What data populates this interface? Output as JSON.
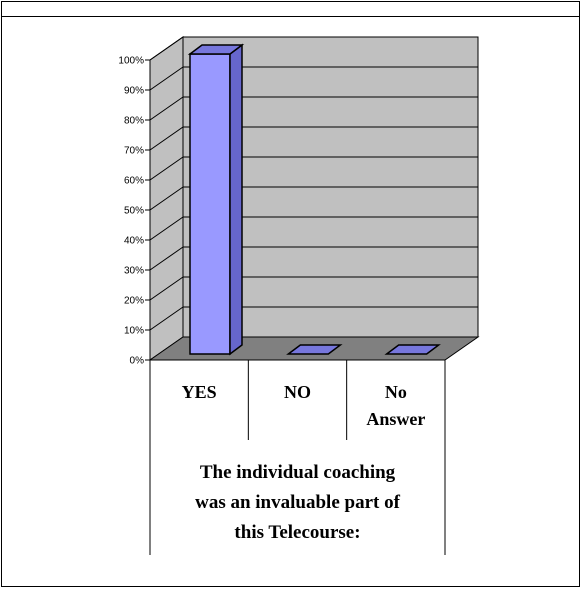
{
  "chart_data": {
    "type": "bar",
    "categories": [
      "YES",
      "NO",
      "No Answer"
    ],
    "category_lines": [
      [
        "YES"
      ],
      [
        "NO"
      ],
      [
        "No",
        "Answer"
      ]
    ],
    "values": [
      100,
      0,
      0
    ],
    "yticks": [
      "0%",
      "10%",
      "20%",
      "30%",
      "40%",
      "50%",
      "60%",
      "70%",
      "80%",
      "90%",
      "100%"
    ],
    "ylim": [
      0,
      100
    ],
    "caption_lines": [
      "The individual coaching",
      "was an invaluable part of",
      "this Telecourse:"
    ],
    "grid": true,
    "colors": {
      "bar_front": "#9999ff",
      "bar_side": "#6666cc",
      "bar_top": "#7777dd",
      "wall": "#c0c0c0",
      "floor": "#808080"
    }
  }
}
